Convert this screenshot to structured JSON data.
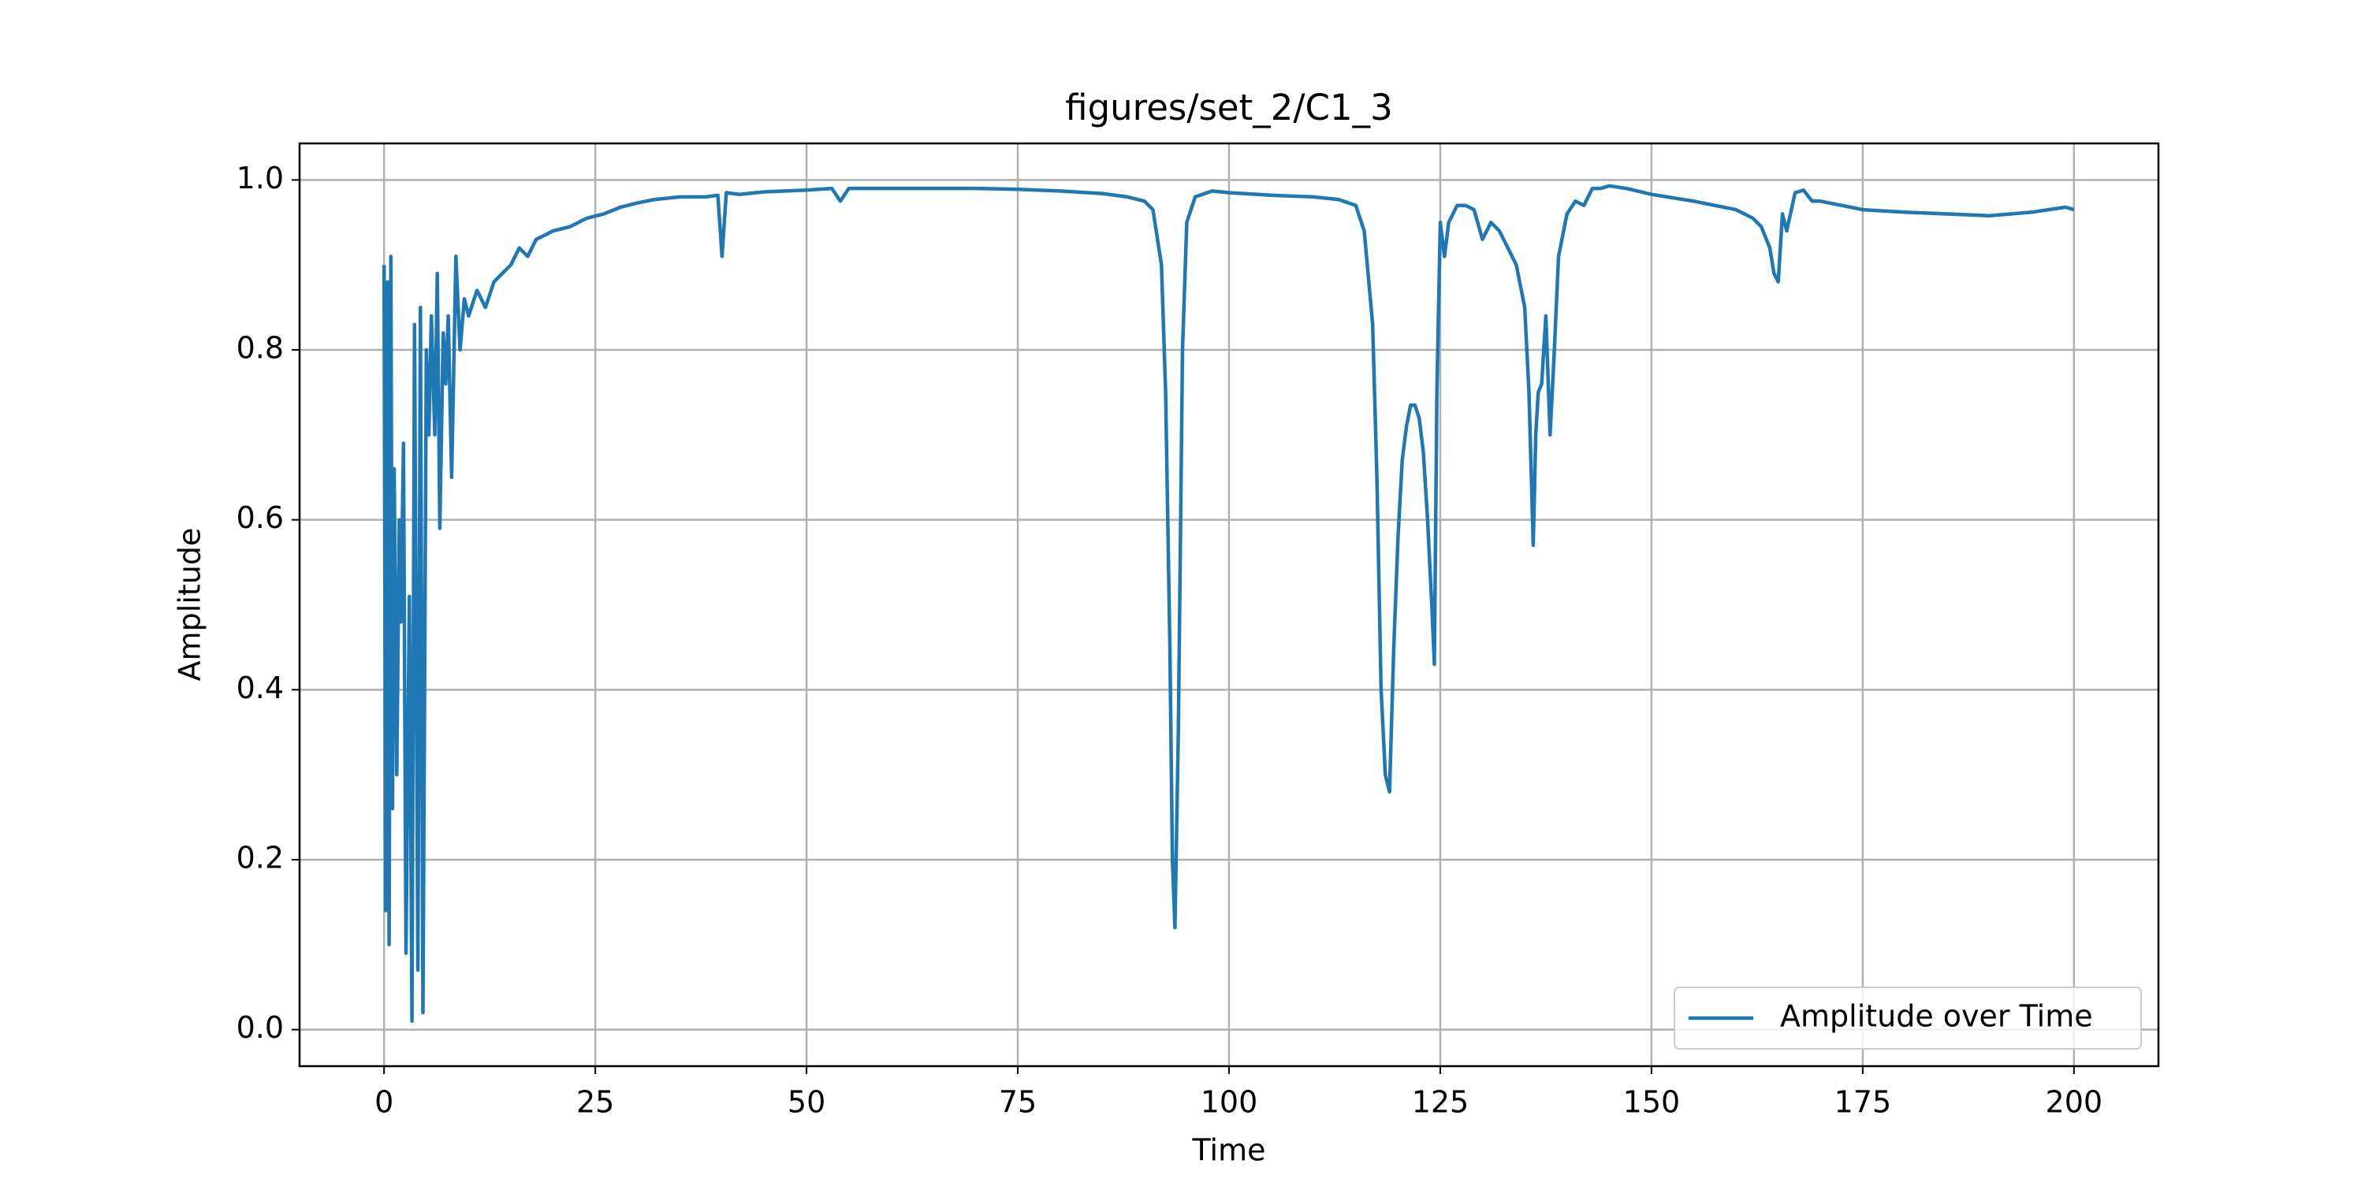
{
  "chart_data": {
    "type": "line",
    "title": "figures/set_2/C1_3",
    "xlabel": "Time",
    "ylabel": "Amplitude",
    "x": [
      0,
      0.2,
      0.4,
      0.6,
      0.8,
      1,
      1.2,
      1.5,
      1.8,
      2,
      2.3,
      2.6,
      3,
      3.3,
      3.6,
      4,
      4.3,
      4.6,
      5,
      5.3,
      5.6,
      6,
      6.3,
      6.6,
      7,
      7.3,
      7.6,
      8,
      8.5,
      9,
      9.5,
      10,
      11,
      12,
      13,
      14,
      15,
      16,
      17,
      18,
      19,
      20,
      22,
      24,
      26,
      28,
      30,
      32,
      35,
      38,
      39.5,
      40,
      40.5,
      42,
      45,
      50,
      53,
      54,
      55,
      60,
      65,
      70,
      75,
      80,
      85,
      88,
      90,
      91,
      92,
      92.5,
      93,
      93.3,
      93.6,
      94,
      94.5,
      95,
      96,
      98,
      100,
      105,
      110,
      113,
      115,
      116,
      117,
      117.5,
      118,
      118.5,
      119,
      119.5,
      120,
      120.5,
      121,
      121.5,
      122,
      122.5,
      123,
      123.5,
      124,
      124.3,
      124.6,
      125,
      125.5,
      126,
      127,
      128,
      129,
      130,
      131,
      132,
      133,
      134,
      135,
      135.5,
      136,
      136.3,
      136.6,
      137,
      137.5,
      138,
      138.5,
      139,
      140,
      141,
      142,
      143,
      144,
      145,
      147,
      150,
      155,
      160,
      162,
      163,
      164,
      164.5,
      165,
      165.5,
      166,
      167,
      168,
      169,
      170,
      175,
      180,
      185,
      190,
      195,
      199,
      200
    ],
    "series": [
      {
        "name": "Amplitude over Time",
        "color": "#1f77b4",
        "values": [
          0.9,
          0.14,
          0.88,
          0.1,
          0.91,
          0.26,
          0.66,
          0.3,
          0.6,
          0.48,
          0.69,
          0.09,
          0.51,
          0.01,
          0.83,
          0.07,
          0.85,
          0.02,
          0.8,
          0.7,
          0.84,
          0.7,
          0.89,
          0.59,
          0.82,
          0.76,
          0.84,
          0.65,
          0.91,
          0.8,
          0.86,
          0.84,
          0.87,
          0.85,
          0.88,
          0.89,
          0.9,
          0.92,
          0.91,
          0.93,
          0.935,
          0.94,
          0.945,
          0.955,
          0.96,
          0.968,
          0.973,
          0.977,
          0.98,
          0.98,
          0.982,
          0.91,
          0.985,
          0.983,
          0.986,
          0.988,
          0.99,
          0.975,
          0.99,
          0.99,
          0.99,
          0.99,
          0.989,
          0.987,
          0.984,
          0.98,
          0.975,
          0.965,
          0.9,
          0.75,
          0.45,
          0.2,
          0.12,
          0.35,
          0.8,
          0.95,
          0.98,
          0.987,
          0.985,
          0.982,
          0.98,
          0.977,
          0.97,
          0.94,
          0.83,
          0.65,
          0.4,
          0.3,
          0.28,
          0.45,
          0.58,
          0.67,
          0.71,
          0.735,
          0.735,
          0.72,
          0.68,
          0.6,
          0.5,
          0.43,
          0.75,
          0.95,
          0.91,
          0.95,
          0.97,
          0.97,
          0.965,
          0.93,
          0.95,
          0.94,
          0.92,
          0.9,
          0.85,
          0.75,
          0.57,
          0.7,
          0.75,
          0.76,
          0.84,
          0.7,
          0.8,
          0.91,
          0.96,
          0.975,
          0.97,
          0.99,
          0.99,
          0.993,
          0.99,
          0.983,
          0.975,
          0.965,
          0.955,
          0.945,
          0.92,
          0.89,
          0.88,
          0.96,
          0.94,
          0.985,
          0.988,
          0.975,
          0.975,
          0.965,
          0.962,
          0.96,
          0.958,
          0.962,
          0.968,
          0.965
        ]
      }
    ],
    "xlim": [
      -10,
      210
    ],
    "ylim": [
      -0.043,
      1.043
    ],
    "xticks": [
      0,
      25,
      50,
      75,
      100,
      125,
      150,
      175,
      200
    ],
    "yticks": [
      {
        "value": 0,
        "label": "0.0"
      },
      0.2,
      0.4,
      0.6,
      0.8,
      {
        "value": 1,
        "label": "1.0"
      }
    ],
    "grid": true,
    "legend": "lower right"
  }
}
